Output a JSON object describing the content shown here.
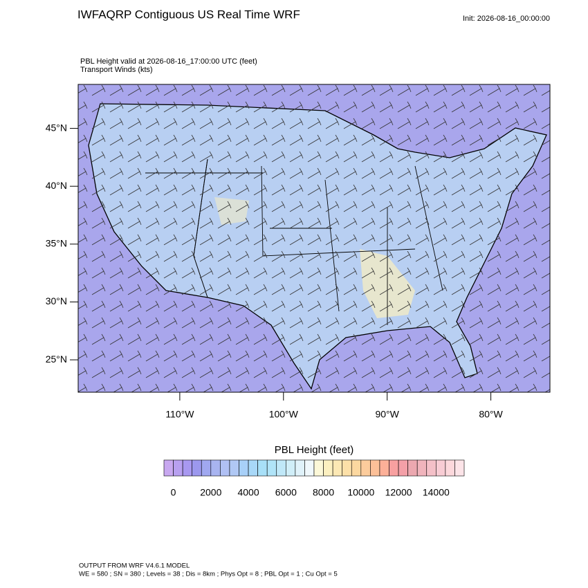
{
  "header": {
    "title": "IWFAQRP Contiguous US Real Time WRF",
    "init": "Init: 2026-08-16_00:00:00",
    "field_label": "PBL Height valid at 2026-08-16_17:00:00 UTC   (feet)",
    "wind_label": "Transport Winds   (kts)"
  },
  "map": {
    "lonlim": [
      -119.8,
      -74.3
    ],
    "latlim": [
      22.2,
      48.8
    ],
    "lonticks": [
      {
        "value": -110,
        "label": "110°W"
      },
      {
        "value": -100,
        "label": "100°W"
      },
      {
        "value": -90,
        "label": "90°W"
      },
      {
        "value": -80,
        "label": "80°W"
      }
    ],
    "latticks": [
      {
        "value": 45,
        "label": "45°N"
      },
      {
        "value": 40,
        "label": "40°N"
      },
      {
        "value": 35,
        "label": "35°N"
      },
      {
        "value": 30,
        "label": "30°N"
      },
      {
        "value": 25,
        "label": "25°N"
      }
    ]
  },
  "colorbar": {
    "title": "PBL Height  (feet)",
    "range": [
      -500,
      15500
    ],
    "ticks": [
      0,
      2000,
      4000,
      6000,
      8000,
      10000,
      12000,
      14000
    ],
    "colors": [
      "#c8a8f0",
      "#b8a0f0",
      "#a898f0",
      "#9c98ee",
      "#a0a8f0",
      "#a8b4f0",
      "#b0c0f4",
      "#b0c8f4",
      "#a8d0f8",
      "#a8d8f8",
      "#a8e0f8",
      "#b0e4f8",
      "#c0e8f8",
      "#d0eef8",
      "#e0f2fa",
      "#f0f8fc",
      "#fcf8d8",
      "#fcf0c0",
      "#fce8b4",
      "#fce0a8",
      "#fcd8a0",
      "#fccc9c",
      "#fcc098",
      "#fcb098",
      "#f8a0a0",
      "#f4a0a8",
      "#eca8b0",
      "#f0b4bc",
      "#f4c0c8",
      "#f8ccd4",
      "#fcd8dc",
      "#fce4e8"
    ]
  },
  "footer": {
    "line1": "OUTPUT FROM WRF V4.6.1 MODEL",
    "line2": "WE = 580 ; SN = 380 ; Levels = 38 ; Dis = 8km ; Phys Opt = 8 ; PBL Opt = 1 ; Cu Opt = 5"
  }
}
